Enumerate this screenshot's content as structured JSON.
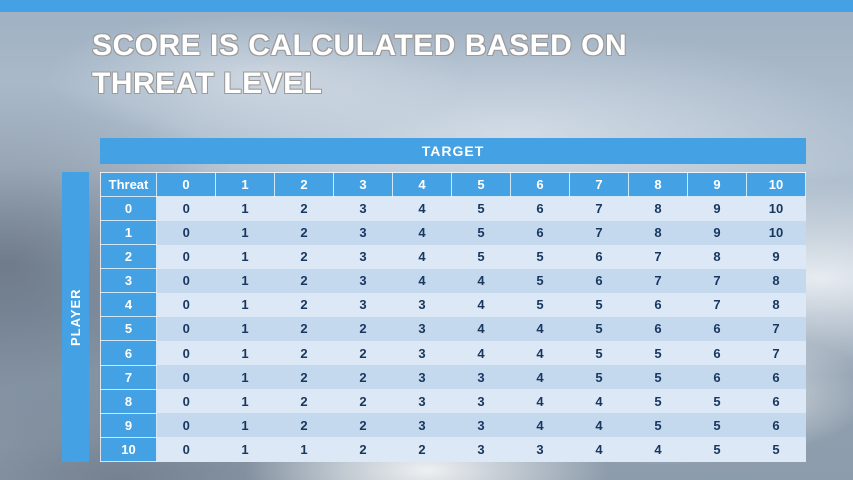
{
  "title": {
    "line1": "SCORE IS CALCULATED BASED ON",
    "line2": "THREAT LEVEL"
  },
  "target_label": "TARGET",
  "player_label": "PLAYER",
  "chart_data": {
    "type": "table",
    "title": "Score is calculated based on threat level",
    "x_axis_label": "TARGET",
    "y_axis_label": "PLAYER",
    "header": [
      "Threat",
      "0",
      "1",
      "2",
      "3",
      "4",
      "5",
      "6",
      "7",
      "8",
      "9",
      "10"
    ],
    "rows": [
      [
        "0",
        "0",
        "1",
        "2",
        "3",
        "4",
        "5",
        "6",
        "7",
        "8",
        "9",
        "10"
      ],
      [
        "1",
        "0",
        "1",
        "2",
        "3",
        "4",
        "5",
        "6",
        "7",
        "8",
        "9",
        "10"
      ],
      [
        "2",
        "0",
        "1",
        "2",
        "3",
        "4",
        "5",
        "5",
        "6",
        "7",
        "8",
        "9"
      ],
      [
        "3",
        "0",
        "1",
        "2",
        "3",
        "4",
        "4",
        "5",
        "6",
        "7",
        "7",
        "8"
      ],
      [
        "4",
        "0",
        "1",
        "2",
        "3",
        "3",
        "4",
        "5",
        "5",
        "6",
        "7",
        "8"
      ],
      [
        "5",
        "0",
        "1",
        "2",
        "2",
        "3",
        "4",
        "4",
        "5",
        "6",
        "6",
        "7"
      ],
      [
        "6",
        "0",
        "1",
        "2",
        "2",
        "3",
        "4",
        "4",
        "5",
        "5",
        "6",
        "7"
      ],
      [
        "7",
        "0",
        "1",
        "2",
        "2",
        "3",
        "3",
        "4",
        "5",
        "5",
        "6",
        "6"
      ],
      [
        "8",
        "0",
        "1",
        "2",
        "2",
        "3",
        "3",
        "4",
        "4",
        "5",
        "5",
        "6"
      ],
      [
        "9",
        "0",
        "1",
        "2",
        "2",
        "3",
        "3",
        "4",
        "4",
        "5",
        "5",
        "6"
      ],
      [
        "10",
        "0",
        "1",
        "1",
        "2",
        "2",
        "3",
        "3",
        "4",
        "4",
        "5",
        "5"
      ]
    ]
  },
  "colors": {
    "accent_blue": "#44a1e3",
    "band_light": "#dce8f6",
    "band_dark": "#c5d9ee",
    "cell_text": "#17375e"
  }
}
